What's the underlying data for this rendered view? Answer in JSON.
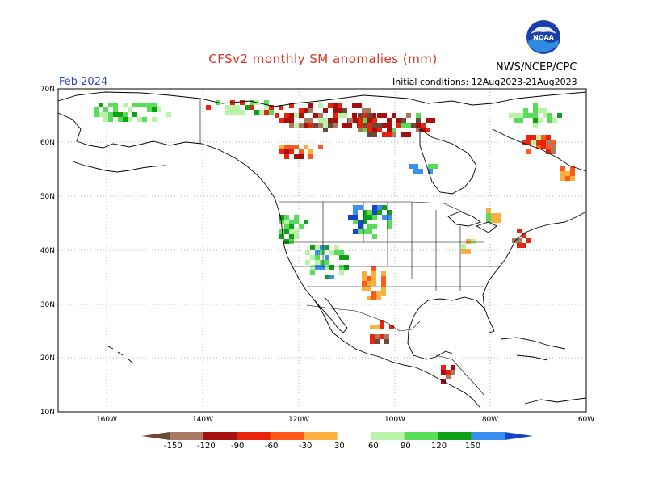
{
  "header": {
    "title": "CFSv2 monthly SM anomalies (mm)",
    "month": "Feb 2024",
    "agency": "NWS/NCEP/CPC",
    "initial_conditions": "Initial conditions: 12Aug2023-21Aug2023",
    "logo_text": "NOAA"
  },
  "axes": {
    "lat_labels": [
      "70N",
      "60N",
      "50N",
      "40N",
      "30N",
      "20N",
      "10N"
    ],
    "lon_labels": [
      "160W",
      "140W",
      "120W",
      "100W",
      "80W",
      "60W"
    ]
  },
  "colorbar": {
    "labels": [
      "-150",
      "-120",
      "-90",
      "-60",
      "-30",
      "30",
      "60",
      "90",
      "120",
      "150"
    ],
    "colors": [
      "#6b4a3a",
      "#a87a62",
      "#a50f0f",
      "#e8240c",
      "#ff5a1a",
      "#f9b03c",
      "#ffffff",
      "#b8f3a8",
      "#58dd58",
      "#10a018",
      "#3b8ff0",
      "#1844c8"
    ]
  },
  "colors": {
    "map_outline": "#000000",
    "grid": "#9a9a9a",
    "title": "#e0301e",
    "month": "#2a3fd0"
  }
}
